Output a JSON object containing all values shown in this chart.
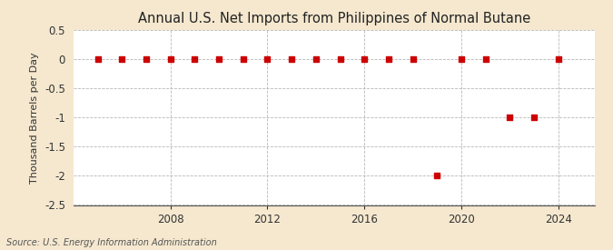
{
  "title": "Annual U.S. Net Imports from Philippines of Normal Butane",
  "ylabel": "Thousand Barrels per Day",
  "source_text": "Source: U.S. Energy Information Administration",
  "background_color": "#f5e8cf",
  "plot_background_color": "#ffffff",
  "grid_color": "#b0b0b0",
  "marker_color": "#cc0000",
  "years": [
    2005,
    2006,
    2007,
    2008,
    2009,
    2010,
    2011,
    2012,
    2013,
    2014,
    2015,
    2016,
    2017,
    2018,
    2019,
    2020,
    2021,
    2022,
    2023,
    2024
  ],
  "values": [
    0,
    0,
    0,
    0,
    0,
    0,
    0,
    0,
    0,
    0,
    0,
    0,
    0,
    0,
    -2.0,
    0,
    0,
    -1.0,
    -1.0,
    0
  ],
  "xlim": [
    2004.0,
    2025.5
  ],
  "ylim": [
    -2.5,
    0.5
  ],
  "yticks": [
    0.5,
    0.0,
    -0.5,
    -1.0,
    -1.5,
    -2.0,
    -2.5
  ],
  "xticks": [
    2008,
    2012,
    2016,
    2020,
    2024
  ],
  "title_fontsize": 10.5,
  "label_fontsize": 8,
  "tick_fontsize": 8.5,
  "source_fontsize": 7
}
